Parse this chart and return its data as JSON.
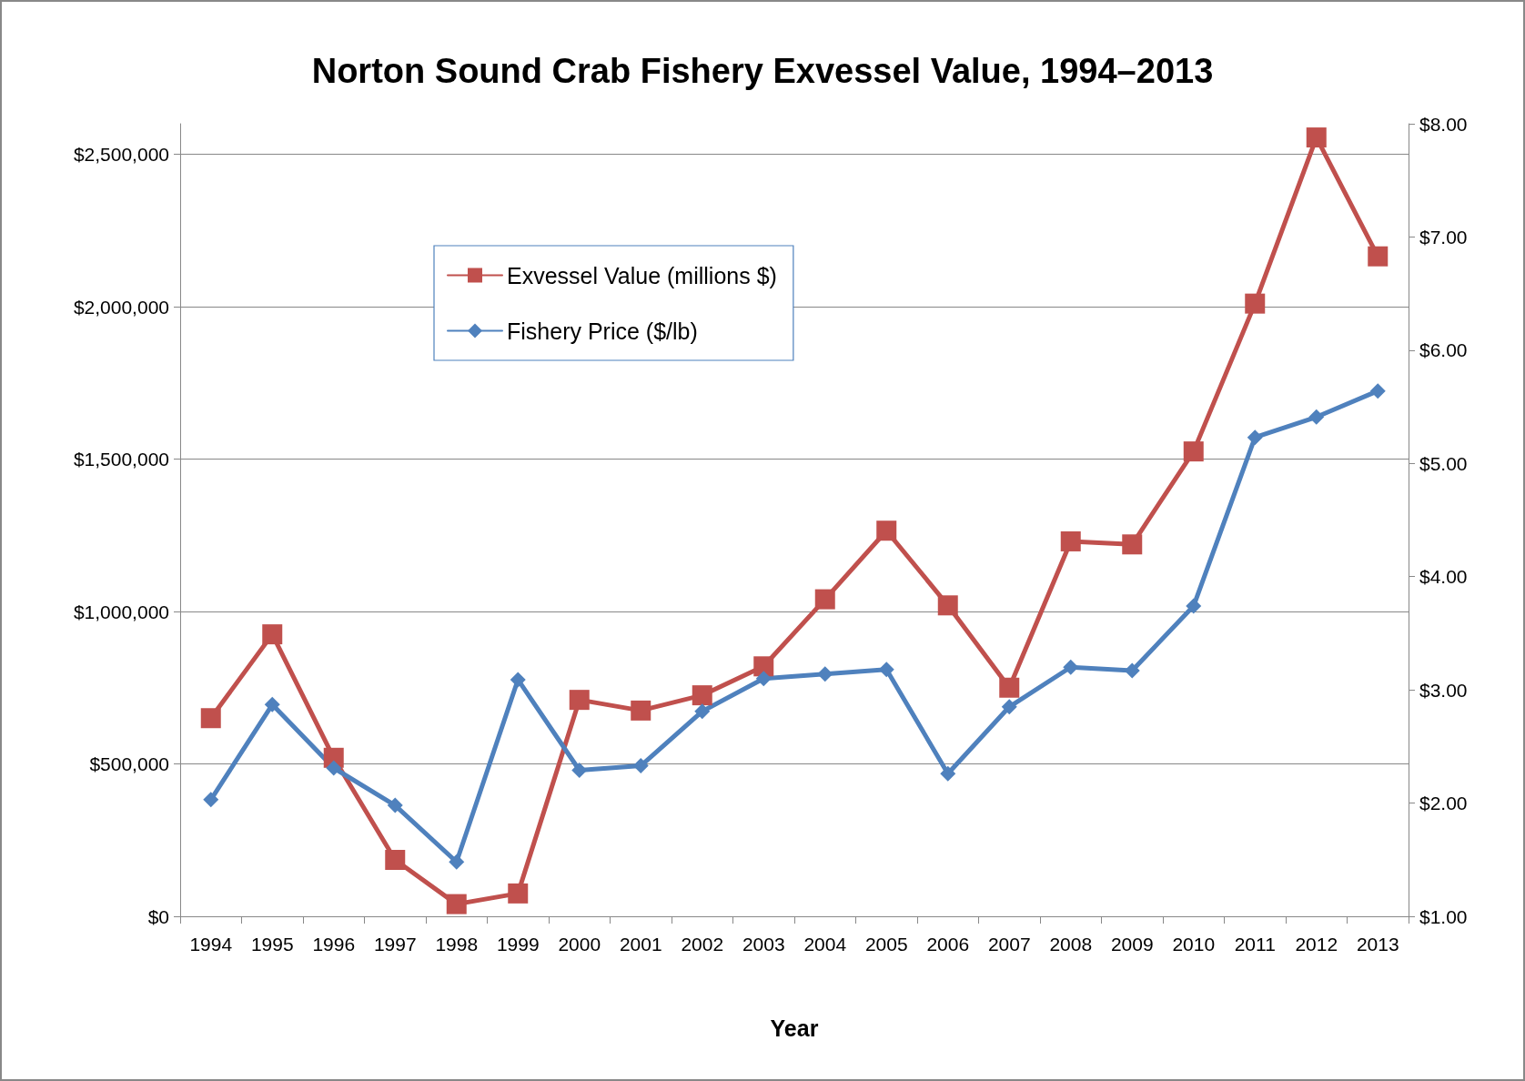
{
  "chart_data": {
    "type": "line",
    "title": "Norton Sound Crab Fishery Exvessel Value, 1994–2013",
    "xlabel": "Year",
    "categories": [
      "1994",
      "1995",
      "1996",
      "1997",
      "1998",
      "1999",
      "2000",
      "2001",
      "2002",
      "2003",
      "2004",
      "2005",
      "2006",
      "2007",
      "2008",
      "2009",
      "2010",
      "2011",
      "2012",
      "2013"
    ],
    "series": [
      {
        "name": "Exvessel Value (millions $)",
        "color": "#c0504d",
        "marker": "square",
        "values": [
          650000,
          925000,
          520000,
          185000,
          40000,
          75000,
          710000,
          675000,
          725000,
          820000,
          1040000,
          1265000,
          1020000,
          750000,
          1230000,
          1220000,
          1525000,
          2010000,
          2555000,
          2165000
        ]
      },
      {
        "name": "Fishery Price ($/lb)",
        "color": "#4f81bd",
        "marker": "diamond",
        "axis": "y2",
        "values": [
          2.03,
          2.87,
          2.31,
          1.98,
          1.48,
          3.09,
          2.29,
          2.33,
          2.81,
          3.1,
          3.14,
          3.18,
          2.26,
          2.85,
          3.2,
          3.17,
          3.74,
          5.23,
          5.41,
          5.64
        ]
      }
    ],
    "ylim": [
      0,
      2600000
    ],
    "yticks": [
      {
        "value": 0,
        "label": "$0"
      },
      {
        "value": 500000,
        "label": "$500,000"
      },
      {
        "value": 1000000,
        "label": "$1,000,000"
      },
      {
        "value": 1500000,
        "label": "$1,500,000"
      },
      {
        "value": 2000000,
        "label": "$2,000,000"
      },
      {
        "value": 2500000,
        "label": "$2,500,000"
      }
    ],
    "y2lim": [
      1,
      8
    ],
    "y2ticks": [
      {
        "value": 1,
        "label": "$1.00"
      },
      {
        "value": 2,
        "label": "$2.00"
      },
      {
        "value": 3,
        "label": "$3.00"
      },
      {
        "value": 4,
        "label": "$4.00"
      },
      {
        "value": 5,
        "label": "$5.00"
      },
      {
        "value": 6,
        "label": "$6.00"
      },
      {
        "value": 7,
        "label": "$7.00"
      },
      {
        "value": 8,
        "label": "$8.00"
      }
    ],
    "grid": "y",
    "legend": "top left",
    "line_style": "solid"
  }
}
